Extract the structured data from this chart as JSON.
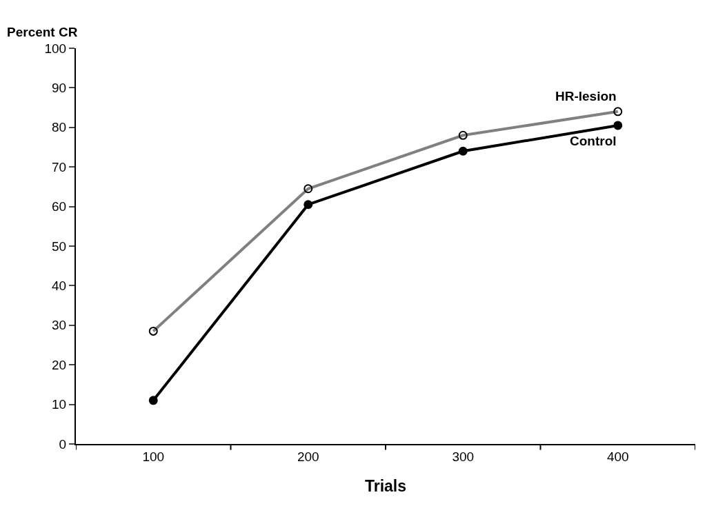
{
  "chart_data": {
    "type": "line",
    "xlabel": "Trials",
    "ylabel": "Percent CR",
    "categories": [
      "100",
      "200",
      "300",
      "400"
    ],
    "series": [
      {
        "name": "HR-lesion",
        "color": "#808080",
        "marker": "circle-open",
        "values": [
          28.5,
          64.5,
          78,
          84
        ]
      },
      {
        "name": "Control",
        "color": "#000000",
        "marker": "circle",
        "values": [
          11,
          60.5,
          74,
          80.5
        ]
      }
    ],
    "ylim": [
      0,
      100
    ],
    "yticks": [
      0,
      10,
      20,
      30,
      40,
      50,
      60,
      70,
      80,
      90,
      100
    ],
    "legend": false,
    "line_style": "solid"
  }
}
